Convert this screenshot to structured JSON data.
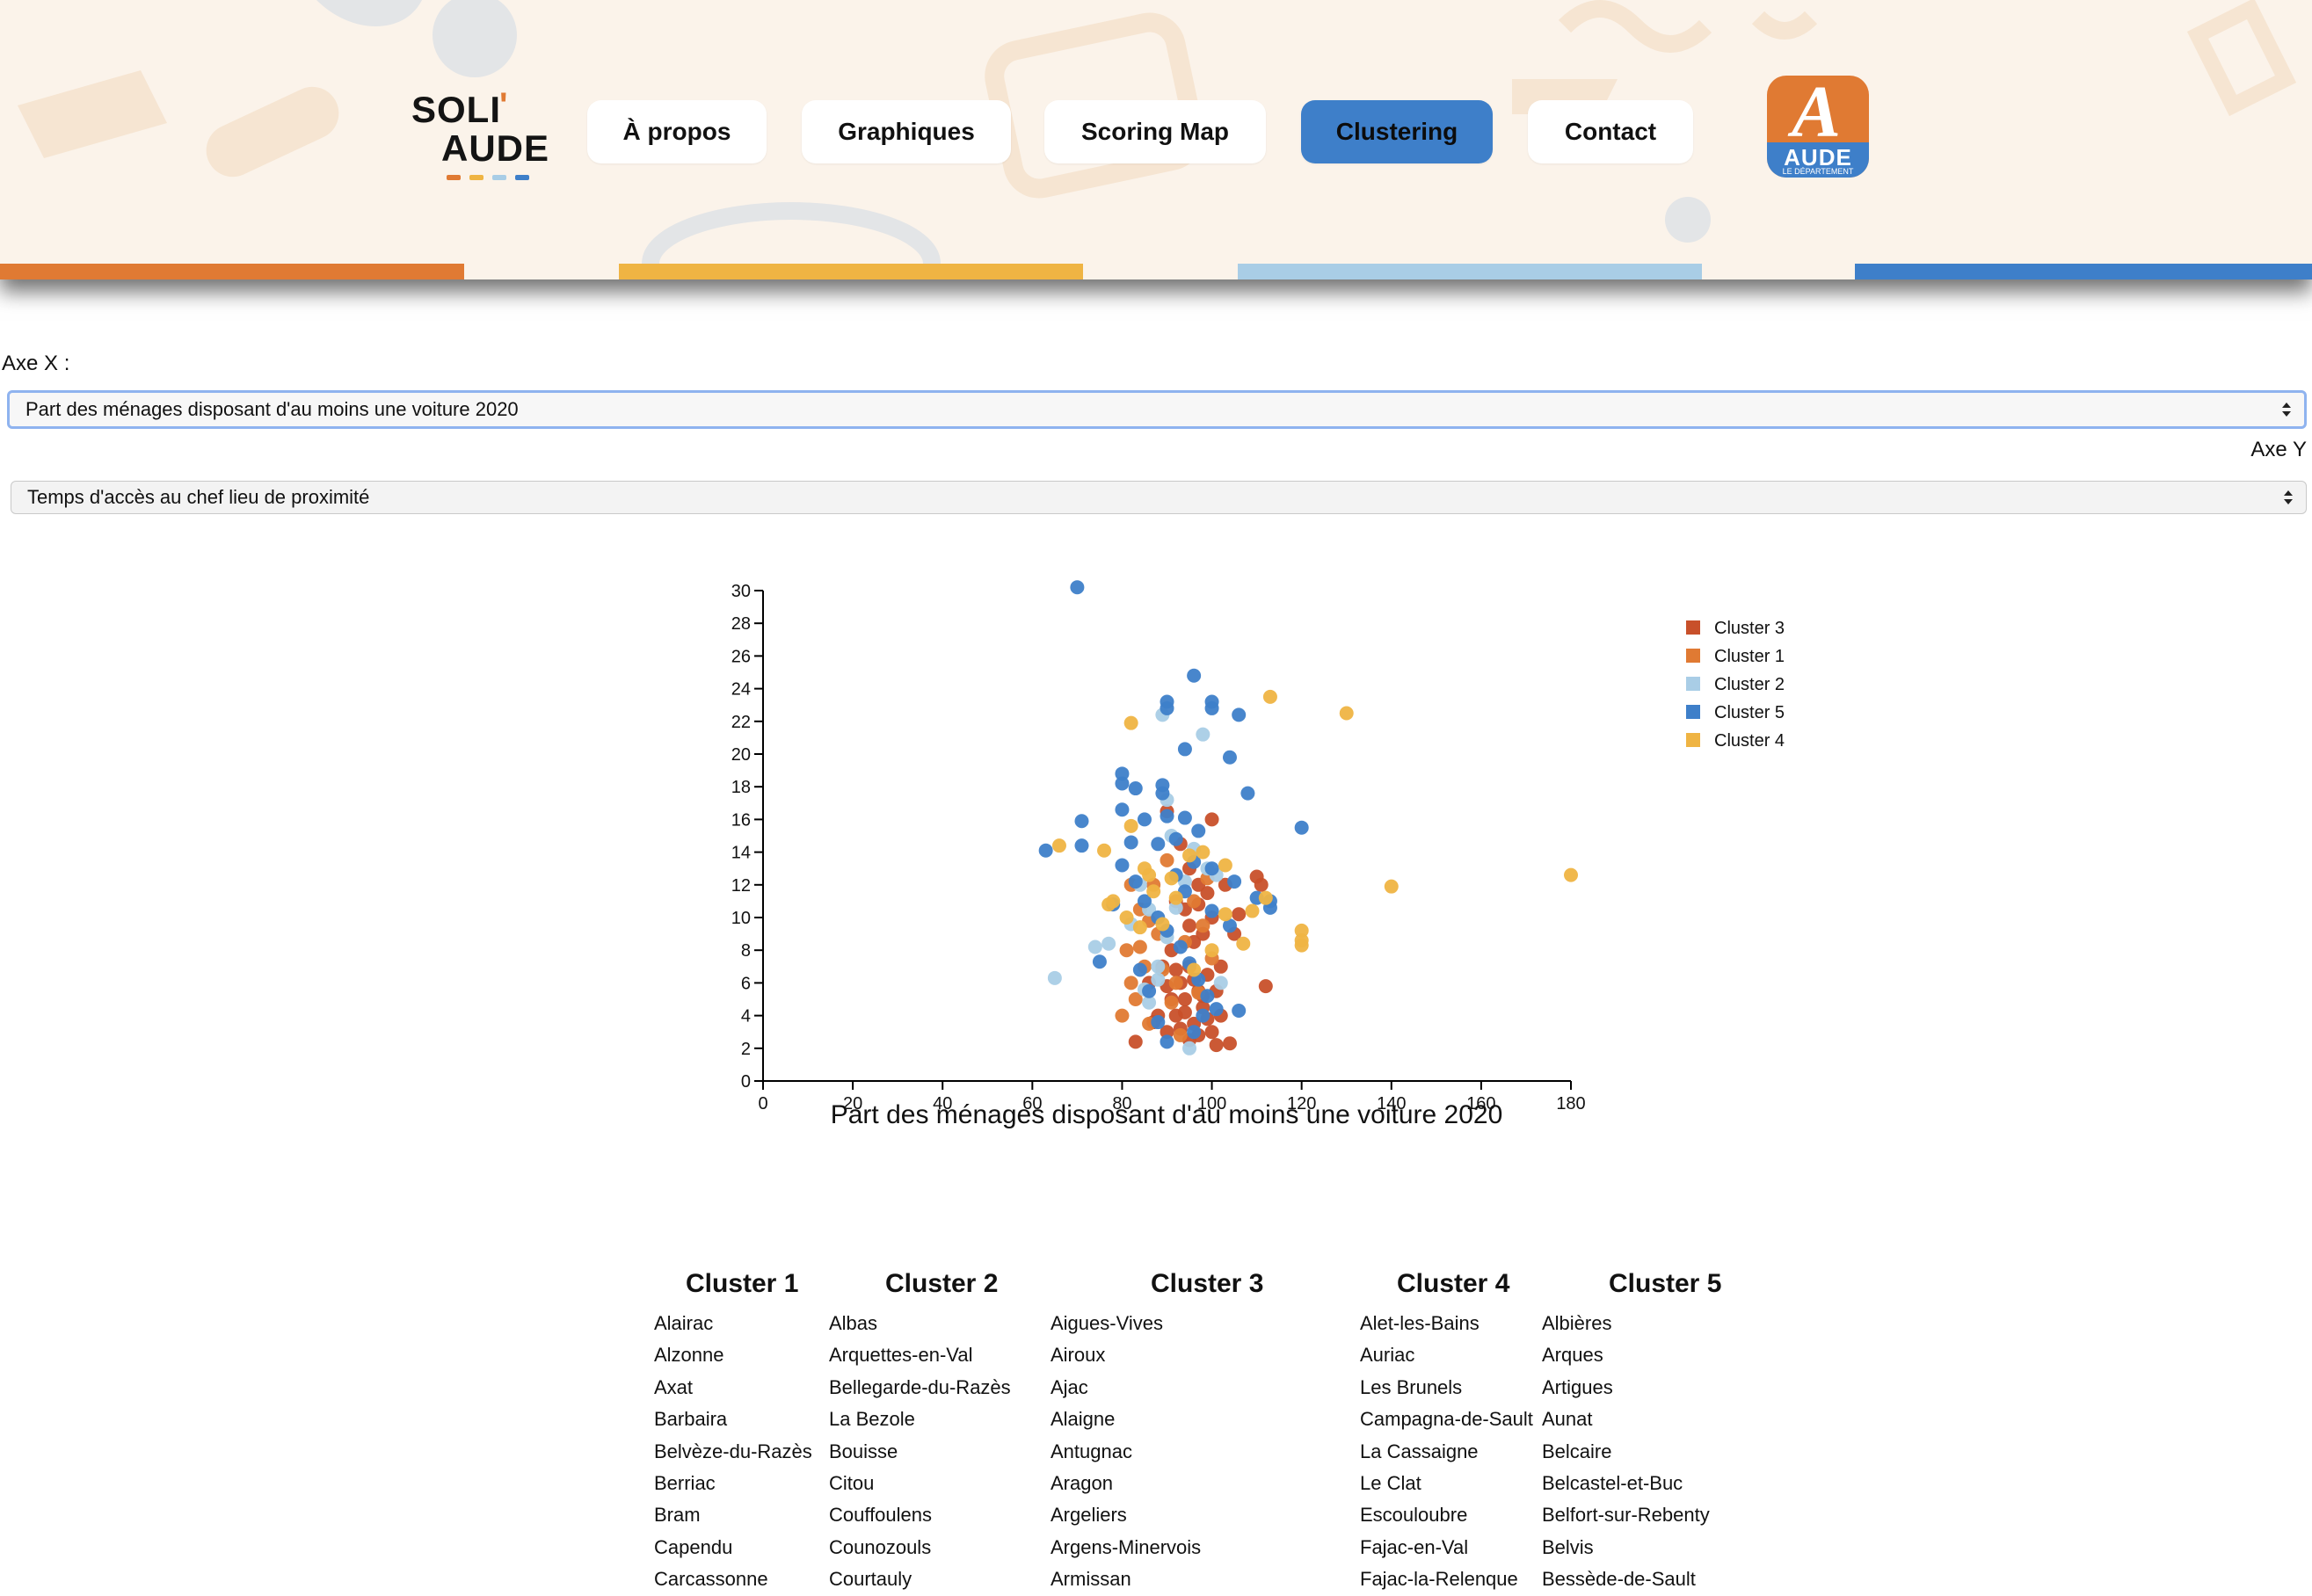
{
  "header": {
    "logo": {
      "line1": "SOLI",
      "quote": "'",
      "line2": "AUDE"
    },
    "nav": [
      {
        "label": "À propos",
        "active": false
      },
      {
        "label": "Graphiques",
        "active": false
      },
      {
        "label": "Scoring Map",
        "active": false
      },
      {
        "label": "Clustering",
        "active": true
      },
      {
        "label": "Contact",
        "active": false
      }
    ],
    "partner_logo": {
      "letter": "A",
      "word": "AUDE",
      "sub": "LE DÉPARTEMENT"
    },
    "colors": {
      "orange": "#e07a33",
      "yellow": "#efb443",
      "light_blue": "#a9cde6",
      "blue": "#3e7fc9"
    }
  },
  "controls": {
    "x_label": "Axe X :",
    "x_value": "Part des ménages disposant d'au moins une voiture 2020",
    "y_label": "Axe Y",
    "y_value": "Temps d'accès au chef lieu de proximité"
  },
  "chart_data": {
    "type": "scatter",
    "xlabel": "Part des ménages disposant d'au moins une voiture 2020",
    "ylabel": "",
    "xlim": [
      0,
      180
    ],
    "ylim": [
      0,
      30
    ],
    "x_ticks": [
      0,
      20,
      40,
      60,
      80,
      100,
      120,
      140,
      160,
      180
    ],
    "y_ticks": [
      0,
      2,
      4,
      6,
      8,
      10,
      12,
      14,
      16,
      18,
      20,
      22,
      24,
      26,
      28,
      30
    ],
    "grid": false,
    "legend_position": "top-right",
    "legend": [
      {
        "name": "Cluster 3",
        "color": "#c8502a"
      },
      {
        "name": "Cluster 1",
        "color": "#e07a33"
      },
      {
        "name": "Cluster 2",
        "color": "#a9cde6"
      },
      {
        "name": "Cluster 5",
        "color": "#3e7fc9"
      },
      {
        "name": "Cluster 4",
        "color": "#efb443"
      }
    ],
    "series": [
      {
        "name": "Cluster 3",
        "color": "#c8502a",
        "points": [
          [
            90,
            3
          ],
          [
            92,
            4
          ],
          [
            94,
            5
          ],
          [
            96,
            3.5
          ],
          [
            98,
            4.5
          ],
          [
            93,
            6
          ],
          [
            95,
            7
          ],
          [
            97,
            5.5
          ],
          [
            99,
            6.5
          ],
          [
            91,
            5
          ],
          [
            88,
            4
          ],
          [
            86,
            6
          ],
          [
            100,
            3
          ],
          [
            102,
            4
          ],
          [
            101,
            5.5
          ],
          [
            95,
            2.5
          ],
          [
            93,
            3.2
          ],
          [
            97,
            2.8
          ],
          [
            99,
            3.8
          ],
          [
            89,
            7
          ],
          [
            91,
            8
          ],
          [
            96,
            8.5
          ],
          [
            98,
            9
          ],
          [
            100,
            10
          ],
          [
            94,
            10.5
          ],
          [
            92,
            11
          ],
          [
            97,
            12
          ],
          [
            99,
            11.5
          ],
          [
            95,
            13
          ],
          [
            93,
            14.5
          ],
          [
            100,
            16
          ],
          [
            90,
            16.5
          ],
          [
            103,
            12
          ],
          [
            105,
            9
          ],
          [
            96,
            6.2
          ],
          [
            94,
            4.2
          ],
          [
            98,
            5.2
          ],
          [
            92,
            6.8
          ],
          [
            90,
            5.8
          ],
          [
            104,
            2.3
          ],
          [
            102,
            7
          ],
          [
            106,
            10.2
          ],
          [
            110,
            12.5
          ],
          [
            111,
            12
          ],
          [
            112,
            5.8
          ],
          [
            101,
            2.2
          ],
          [
            83,
            2.4
          ],
          [
            87,
            3.6
          ],
          [
            95,
            9.5
          ],
          [
            97,
            10.8
          ]
        ]
      },
      {
        "name": "Cluster 1",
        "color": "#e07a33",
        "points": [
          [
            80,
            4
          ],
          [
            83,
            5
          ],
          [
            85,
            7
          ],
          [
            88,
            9
          ],
          [
            86,
            3.5
          ],
          [
            82,
            6
          ],
          [
            81,
            8
          ],
          [
            84,
            10.5
          ],
          [
            87,
            12
          ],
          [
            90,
            13.5
          ],
          [
            92,
            6
          ],
          [
            94,
            8.5
          ],
          [
            96,
            11
          ],
          [
            98,
            9.5
          ],
          [
            100,
            7.5
          ],
          [
            93,
            2.8
          ],
          [
            91,
            4.8
          ],
          [
            89,
            6.8
          ],
          [
            97,
            5.4
          ],
          [
            99,
            12.4
          ],
          [
            86,
            9.8
          ],
          [
            84,
            8.2
          ],
          [
            82,
            12
          ]
        ]
      },
      {
        "name": "Cluster 2",
        "color": "#a9cde6",
        "points": [
          [
            65,
            6.3
          ],
          [
            74,
            8.2
          ],
          [
            77,
            8.4
          ],
          [
            82,
            9.6
          ],
          [
            84,
            12
          ],
          [
            86,
            10.5
          ],
          [
            88,
            7
          ],
          [
            90,
            8.8
          ],
          [
            92,
            10.6
          ],
          [
            94,
            12.2
          ],
          [
            95,
            2
          ],
          [
            96,
            14.2
          ],
          [
            98,
            21.2
          ],
          [
            89,
            22.4
          ],
          [
            90,
            17.2
          ],
          [
            91,
            15
          ],
          [
            99,
            13
          ],
          [
            101,
            12.6
          ],
          [
            102,
            6
          ],
          [
            86,
            4.8
          ],
          [
            88,
            6.2
          ],
          [
            85,
            5.6
          ]
        ]
      },
      {
        "name": "Cluster 5",
        "color": "#3e7fc9",
        "points": [
          [
            70,
            30.2
          ],
          [
            96,
            24.8
          ],
          [
            90,
            23.2
          ],
          [
            100,
            23.2
          ],
          [
            90,
            22.8
          ],
          [
            100,
            22.8
          ],
          [
            106,
            22.4
          ],
          [
            104,
            19.8
          ],
          [
            94,
            20.3
          ],
          [
            80,
            18.8
          ],
          [
            80,
            18.2
          ],
          [
            83,
            17.9
          ],
          [
            89,
            18.1
          ],
          [
            89,
            17.6
          ],
          [
            108,
            17.6
          ],
          [
            80,
            16.6
          ],
          [
            85,
            16
          ],
          [
            90,
            16.2
          ],
          [
            94,
            16.1
          ],
          [
            97,
            15.3
          ],
          [
            120,
            15.5
          ],
          [
            71,
            15.9
          ],
          [
            63,
            14.1
          ],
          [
            71,
            14.4
          ],
          [
            82,
            14.6
          ],
          [
            88,
            14.5
          ],
          [
            92,
            14.8
          ],
          [
            96,
            13.4
          ],
          [
            100,
            13
          ],
          [
            105,
            12.2
          ],
          [
            110,
            11.2
          ],
          [
            113,
            11
          ],
          [
            113,
            10.6
          ],
          [
            78,
            10.8
          ],
          [
            80,
            13.2
          ],
          [
            83,
            12.2
          ],
          [
            85,
            11
          ],
          [
            88,
            10
          ],
          [
            90,
            9.2
          ],
          [
            93,
            8.2
          ],
          [
            95,
            7.2
          ],
          [
            97,
            6.2
          ],
          [
            99,
            5.2
          ],
          [
            101,
            4.4
          ],
          [
            106,
            4.3
          ],
          [
            104,
            9.5
          ],
          [
            100,
            10.4
          ],
          [
            94,
            11.6
          ],
          [
            92,
            12.6
          ],
          [
            75,
            7.3
          ],
          [
            84,
            6.8
          ],
          [
            86,
            5.5
          ],
          [
            88,
            3.6
          ],
          [
            90,
            2.4
          ],
          [
            96,
            3
          ],
          [
            98,
            4
          ]
        ]
      },
      {
        "name": "Cluster 4",
        "color": "#efb443",
        "points": [
          [
            113,
            23.5
          ],
          [
            130,
            22.5
          ],
          [
            82,
            21.9
          ],
          [
            140,
            11.9
          ],
          [
            180,
            12.6
          ],
          [
            120,
            9.2
          ],
          [
            120,
            8.6
          ],
          [
            120,
            8.3
          ],
          [
            66,
            14.4
          ],
          [
            76,
            14.1
          ],
          [
            77,
            10.8
          ],
          [
            78,
            11
          ],
          [
            82,
            15.6
          ],
          [
            85,
            13
          ],
          [
            87,
            11.6
          ],
          [
            89,
            9.6
          ],
          [
            91,
            12.4
          ],
          [
            95,
            13.8
          ],
          [
            103,
            13.2
          ],
          [
            107,
            8.4
          ],
          [
            109,
            10.4
          ],
          [
            112,
            11.2
          ],
          [
            103,
            10.2
          ],
          [
            100,
            8
          ],
          [
            96,
            6.8
          ],
          [
            84,
            9.4
          ],
          [
            81,
            10
          ],
          [
            86,
            12.6
          ],
          [
            92,
            11.2
          ],
          [
            98,
            14
          ]
        ]
      }
    ]
  },
  "clusters": [
    {
      "title": "Cluster 1",
      "items": [
        "Alairac",
        "Alzonne",
        "Axat",
        "Barbaira",
        "Belvèze-du-Razès",
        "Berriac",
        "Bram",
        "Capendu",
        "Carcassonne"
      ]
    },
    {
      "title": "Cluster 2",
      "items": [
        "Albas",
        "Arquettes-en-Val",
        "Bellegarde-du-Razès",
        "La Bezole",
        "Bouisse",
        "Citou",
        "Couffoulens",
        "Counozouls",
        "Courtauly"
      ]
    },
    {
      "title": "Cluster 3",
      "items": [
        "Aigues-Vives",
        "Airoux",
        "Ajac",
        "Alaigne",
        "Antugnac",
        "Aragon",
        "Argeliers",
        "Argens-Minervois",
        "Armissan"
      ]
    },
    {
      "title": "Cluster 4",
      "items": [
        "Alet-les-Bains",
        "Auriac",
        "Les Brunels",
        "Campagna-de-Sault",
        "La Cassaigne",
        "Le Clat",
        "Escouloubre",
        "Fajac-en-Val",
        "Fajac-la-Relenque"
      ]
    },
    {
      "title": "Cluster 5",
      "items": [
        "Albières",
        "Arques",
        "Artigues",
        "Aunat",
        "Belcaire",
        "Belcastel-et-Buc",
        "Belfort-sur-Rebenty",
        "Belvis",
        "Bessède-de-Sault"
      ]
    }
  ]
}
